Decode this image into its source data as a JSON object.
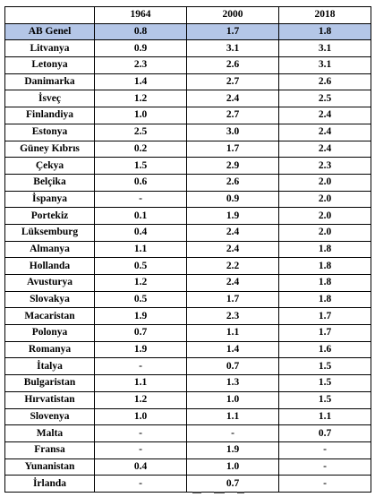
{
  "table": {
    "headers": [
      "",
      "1964",
      "2000",
      "2018"
    ],
    "highlight_color": "#b4c6e7",
    "rows": [
      {
        "country": "AB Genel",
        "y1964": "0.8",
        "y2000": "1.7",
        "y2018": "1.8",
        "highlight": true
      },
      {
        "country": "Litvanya",
        "y1964": "0.9",
        "y2000": "3.1",
        "y2018": "3.1"
      },
      {
        "country": "Letonya",
        "y1964": "2.3",
        "y2000": "2.6",
        "y2018": "3.1"
      },
      {
        "country": "Danimarka",
        "y1964": "1.4",
        "y2000": "2.7",
        "y2018": "2.6"
      },
      {
        "country": "İsveç",
        "y1964": "1.2",
        "y2000": "2.4",
        "y2018": "2.5"
      },
      {
        "country": "Finlandiya",
        "y1964": "1.0",
        "y2000": "2.7",
        "y2018": "2.4"
      },
      {
        "country": "Estonya",
        "y1964": "2.5",
        "y2000": "3.0",
        "y2018": "2.4"
      },
      {
        "country": "Güney Kıbrıs",
        "y1964": "0.2",
        "y2000": "1.7",
        "y2018": "2.4"
      },
      {
        "country": "Çekya",
        "y1964": "1.5",
        "y2000": "2.9",
        "y2018": "2.3"
      },
      {
        "country": "Belçika",
        "y1964": "0.6",
        "y2000": "2.6",
        "y2018": "2.0"
      },
      {
        "country": "İspanya",
        "y1964": "-",
        "y2000": "0.9",
        "y2018": "2.0"
      },
      {
        "country": "Portekiz",
        "y1964": "0.1",
        "y2000": "1.9",
        "y2018": "2.0"
      },
      {
        "country": "Lüksemburg",
        "y1964": "0.4",
        "y2000": "2.4",
        "y2018": "2.0"
      },
      {
        "country": "Almanya",
        "y1964": "1.1",
        "y2000": "2.4",
        "y2018": "1.8"
      },
      {
        "country": "Hollanda",
        "y1964": "0.5",
        "y2000": "2.2",
        "y2018": "1.8"
      },
      {
        "country": "Avusturya",
        "y1964": "1.2",
        "y2000": "2.4",
        "y2018": "1.8"
      },
      {
        "country": "Slovakya",
        "y1964": "0.5",
        "y2000": "1.7",
        "y2018": "1.8"
      },
      {
        "country": "Macaristan",
        "y1964": "1.9",
        "y2000": "2.3",
        "y2018": "1.7"
      },
      {
        "country": "Polonya",
        "y1964": "0.7",
        "y2000": "1.1",
        "y2018": "1.7"
      },
      {
        "country": "Romanya",
        "y1964": "1.9",
        "y2000": "1.4",
        "y2018": "1.6"
      },
      {
        "country": "İtalya",
        "y1964": "-",
        "y2000": "0.7",
        "y2018": "1.5"
      },
      {
        "country": "Bulgaristan",
        "y1964": "1.1",
        "y2000": "1.3",
        "y2018": "1.5"
      },
      {
        "country": "Hırvatistan",
        "y1964": "1.2",
        "y2000": "1.0",
        "y2018": "1.5"
      },
      {
        "country": "Slovenya",
        "y1964": "1.0",
        "y2000": "1.1",
        "y2018": "1.1"
      },
      {
        "country": "Malta",
        "y1964": "-",
        "y2000": "-",
        "y2018": "0.7"
      },
      {
        "country": "Fransa",
        "y1964": "-",
        "y2000": "1.9",
        "y2018": "-"
      },
      {
        "country": "Yunanistan",
        "y1964": "0.4",
        "y2000": "1.0",
        "y2018": "-"
      },
      {
        "country": "İrlanda",
        "y1964": "-",
        "y2000": "0.7",
        "y2018": "-"
      }
    ]
  }
}
